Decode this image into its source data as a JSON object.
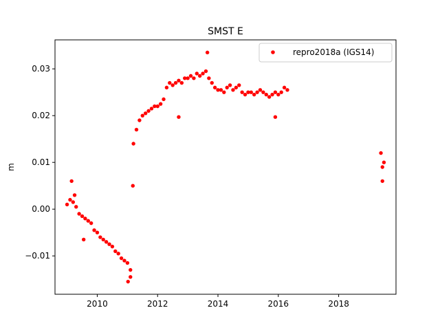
{
  "chart_data": {
    "type": "scatter",
    "title": "SMST E",
    "xlabel": "",
    "ylabel": "m",
    "xlim": [
      2008.6,
      2019.9
    ],
    "ylim": [
      -0.0182,
      0.0362
    ],
    "xticks": [
      2010,
      2012,
      2014,
      2016,
      2018
    ],
    "yticks": [
      -0.01,
      0.0,
      0.01,
      0.02,
      0.03
    ],
    "ytick_labels": [
      "−0.01",
      "0.00",
      "0.01",
      "0.02",
      "0.03"
    ],
    "grid": false,
    "legend_position": "top-right",
    "series": [
      {
        "name": "repro2018a (IGS14)",
        "color": "#ff0000",
        "marker": "circle",
        "x": [
          2009.0,
          2009.1,
          2009.2,
          2009.3,
          2009.4,
          2009.5,
          2009.6,
          2009.7,
          2009.8,
          2009.9,
          2010.0,
          2010.1,
          2010.2,
          2010.3,
          2010.4,
          2010.5,
          2010.6,
          2010.7,
          2010.8,
          2010.9,
          2011.0,
          2011.1,
          2011.2,
          2011.3,
          2011.4,
          2011.5,
          2011.6,
          2011.7,
          2011.8,
          2011.9,
          2012.0,
          2012.1,
          2012.2,
          2012.3,
          2012.4,
          2012.5,
          2012.6,
          2012.7,
          2012.8,
          2012.9,
          2013.0,
          2013.1,
          2013.2,
          2013.3,
          2013.4,
          2013.5,
          2013.6,
          2013.7,
          2013.8,
          2013.9,
          2014.0,
          2014.1,
          2014.2,
          2014.3,
          2014.4,
          2014.5,
          2014.6,
          2014.7,
          2014.8,
          2014.9,
          2015.0,
          2015.1,
          2015.2,
          2015.3,
          2015.4,
          2015.5,
          2015.6,
          2015.7,
          2015.8,
          2015.9,
          2016.0,
          2016.1,
          2016.2,
          2016.3,
          2019.4,
          2019.45,
          2019.5,
          2009.15,
          2011.18,
          2009.25,
          2009.55,
          2012.7,
          2013.65,
          2015.9,
          2019.45,
          2011.02,
          2011.1
        ],
        "y": [
          0.001,
          0.002,
          0.0015,
          0.0005,
          -0.001,
          -0.0015,
          -0.002,
          -0.0025,
          -0.003,
          -0.0045,
          -0.005,
          -0.006,
          -0.0065,
          -0.007,
          -0.0075,
          -0.008,
          -0.009,
          -0.0095,
          -0.0105,
          -0.011,
          -0.0115,
          -0.013,
          0.014,
          0.017,
          0.019,
          0.02,
          0.0205,
          0.021,
          0.0215,
          0.022,
          0.022,
          0.0225,
          0.0235,
          0.026,
          0.027,
          0.0265,
          0.027,
          0.0275,
          0.027,
          0.028,
          0.028,
          0.0285,
          0.028,
          0.029,
          0.0285,
          0.029,
          0.0295,
          0.028,
          0.027,
          0.026,
          0.0255,
          0.0255,
          0.025,
          0.026,
          0.0265,
          0.0255,
          0.026,
          0.0265,
          0.025,
          0.0245,
          0.025,
          0.025,
          0.0245,
          0.025,
          0.0255,
          0.025,
          0.0245,
          0.024,
          0.0245,
          0.025,
          0.0245,
          0.025,
          0.026,
          0.0255,
          0.012,
          0.009,
          0.01,
          0.006,
          0.005,
          0.003,
          -0.0065,
          0.0197,
          0.0335,
          0.0197,
          0.006,
          -0.0155,
          -0.0145
        ]
      }
    ]
  }
}
